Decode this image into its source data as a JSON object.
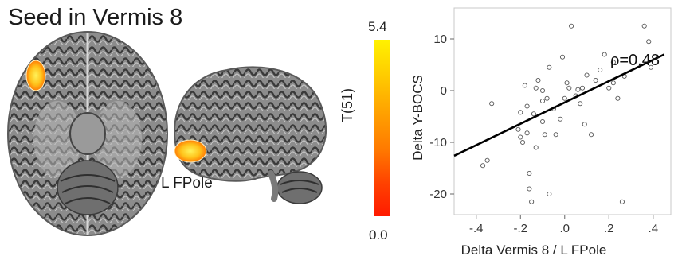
{
  "figure": {
    "title": "Seed in Vermis 8",
    "region_label": "L FPole"
  },
  "colorbar": {
    "label": "T(51)",
    "max_label": "5.4",
    "min_label": "0.0",
    "colors": [
      "#fff200",
      "#ffd000",
      "#ffa400",
      "#ff7a00",
      "#ff4000",
      "#ff1a00"
    ]
  },
  "chart_data": {
    "type": "scatter",
    "xlabel": "Delta Vermis 8 / L FPole",
    "ylabel": "Delta Y-BOCS",
    "xlim": [
      -0.5,
      0.48
    ],
    "ylim": [
      -24,
      16
    ],
    "x_ticks": [
      -0.4,
      -0.2,
      0,
      0.2,
      0.4
    ],
    "x_tick_labels": [
      "-.4",
      "-.2",
      ".0",
      ".2",
      ".4"
    ],
    "y_ticks": [
      10,
      0,
      -10,
      -20
    ],
    "y_tick_labels": [
      "10",
      "0",
      "-10",
      "-20"
    ],
    "annotation": "ρ=0.48",
    "regression_line": {
      "x": [
        -0.5,
        0.45
      ],
      "y": [
        -12.6,
        7.0
      ]
    },
    "points": [
      {
        "x": -0.37,
        "y": -14.5
      },
      {
        "x": -0.35,
        "y": -13.5
      },
      {
        "x": -0.33,
        "y": -2.5
      },
      {
        "x": -0.21,
        "y": -7.5
      },
      {
        "x": -0.2,
        "y": -9.0
      },
      {
        "x": -0.19,
        "y": -10.0
      },
      {
        "x": -0.17,
        "y": -8.2
      },
      {
        "x": -0.16,
        "y": -16.0
      },
      {
        "x": -0.15,
        "y": -21.5
      },
      {
        "x": -0.16,
        "y": -19.0
      },
      {
        "x": -0.18,
        "y": 1.0
      },
      {
        "x": -0.17,
        "y": -3.0
      },
      {
        "x": -0.14,
        "y": -4.5
      },
      {
        "x": -0.13,
        "y": 0.5
      },
      {
        "x": -0.12,
        "y": 2.0
      },
      {
        "x": -0.1,
        "y": -2.0
      },
      {
        "x": -0.1,
        "y": -6.0
      },
      {
        "x": -0.09,
        "y": -8.5
      },
      {
        "x": -0.1,
        "y": 0.0
      },
      {
        "x": -0.08,
        "y": -1.5
      },
      {
        "x": -0.07,
        "y": -20.0
      },
      {
        "x": -0.05,
        "y": -3.5
      },
      {
        "x": -0.04,
        "y": -8.5
      },
      {
        "x": -0.02,
        "y": -5.5
      },
      {
        "x": -0.01,
        "y": 6.5
      },
      {
        "x": 0.0,
        "y": -1.5
      },
      {
        "x": 0.01,
        "y": 1.5
      },
      {
        "x": 0.02,
        "y": 0.5
      },
      {
        "x": 0.03,
        "y": 12.5
      },
      {
        "x": 0.05,
        "y": -1.0
      },
      {
        "x": 0.06,
        "y": 0.2
      },
      {
        "x": 0.07,
        "y": -2.5
      },
      {
        "x": 0.08,
        "y": 0.5
      },
      {
        "x": 0.1,
        "y": 3.0
      },
      {
        "x": 0.12,
        "y": -8.5
      },
      {
        "x": 0.14,
        "y": 2.0
      },
      {
        "x": 0.16,
        "y": 4.0
      },
      {
        "x": 0.18,
        "y": 7.0
      },
      {
        "x": 0.2,
        "y": 0.5
      },
      {
        "x": 0.22,
        "y": 1.5
      },
      {
        "x": 0.24,
        "y": -1.5
      },
      {
        "x": 0.26,
        "y": -21.5
      },
      {
        "x": 0.27,
        "y": 2.8
      },
      {
        "x": 0.22,
        "y": 5.5
      },
      {
        "x": 0.36,
        "y": 12.5
      },
      {
        "x": 0.38,
        "y": 9.5
      },
      {
        "x": 0.39,
        "y": 4.5
      },
      {
        "x": -0.07,
        "y": 4.5
      },
      {
        "x": -0.2,
        "y": -4.2
      },
      {
        "x": 0.09,
        "y": -6.5
      },
      {
        "x": -0.13,
        "y": -11.0
      }
    ]
  }
}
